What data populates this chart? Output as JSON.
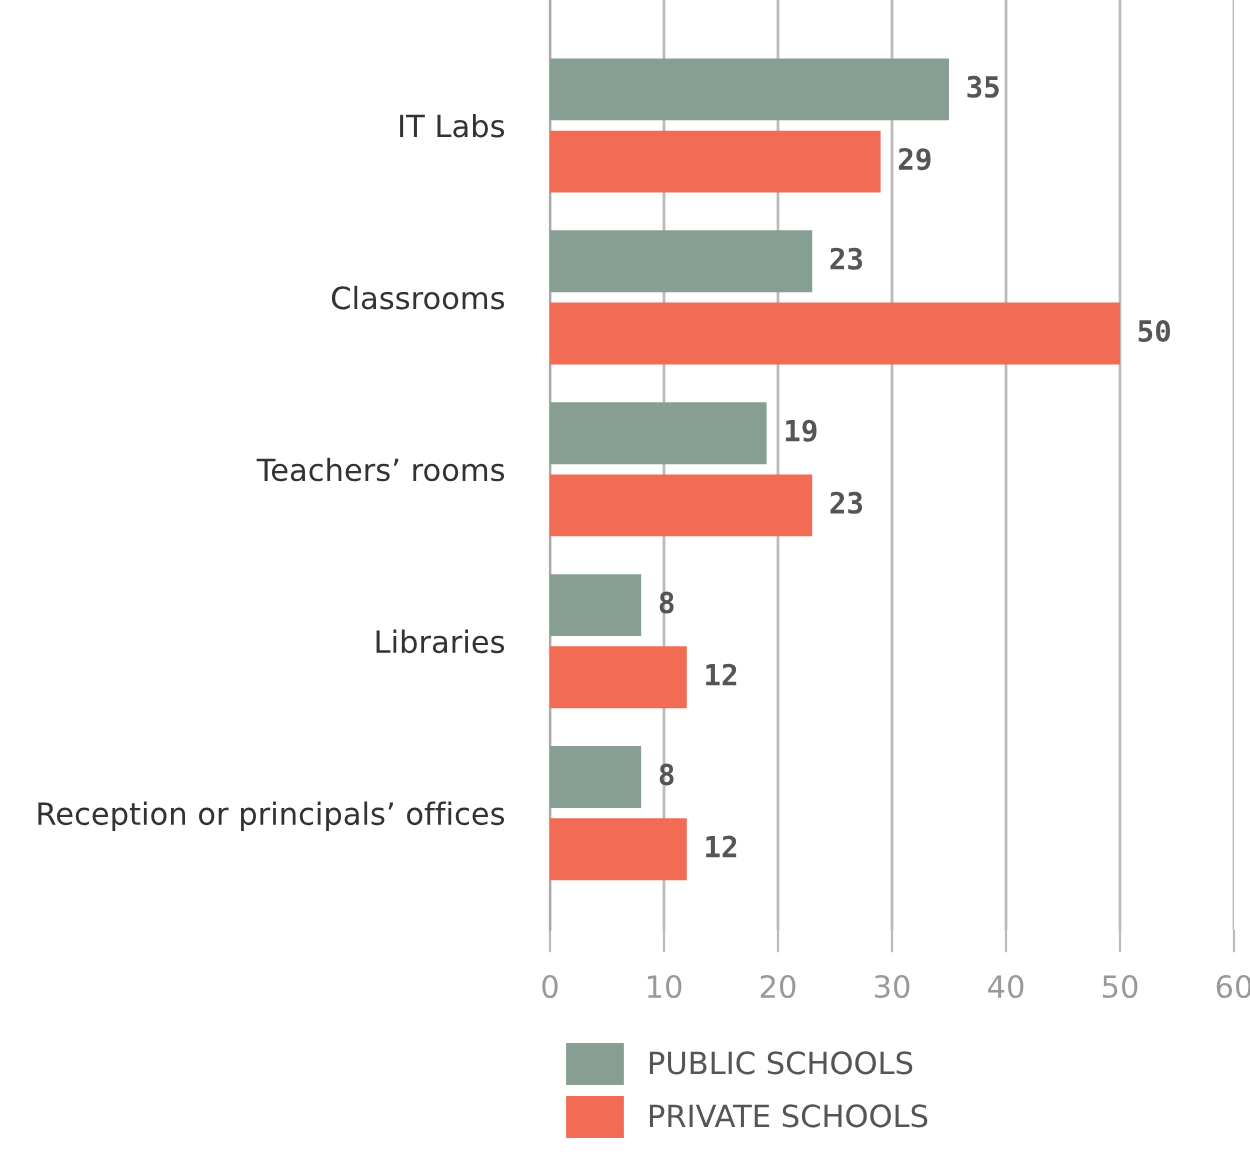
{
  "chart_data": {
    "type": "bar",
    "orientation": "horizontal",
    "categories": [
      "IT Labs",
      "Classrooms",
      "Teachers’ rooms",
      "Libraries",
      "Reception or principals’ offices"
    ],
    "series": [
      {
        "name": "PUBLIC SCHOOLS",
        "color": "#879e93",
        "values": [
          35,
          23,
          19,
          8,
          8
        ]
      },
      {
        "name": "PRIVATE SCHOOLS",
        "color": "#f26b55",
        "values": [
          29,
          50,
          23,
          12,
          12
        ]
      }
    ],
    "xlim": [
      0,
      60
    ],
    "xticks": [
      0,
      10,
      20,
      30,
      40,
      50,
      60
    ],
    "grid": "x",
    "legend": "bottom",
    "data_labels": true
  }
}
